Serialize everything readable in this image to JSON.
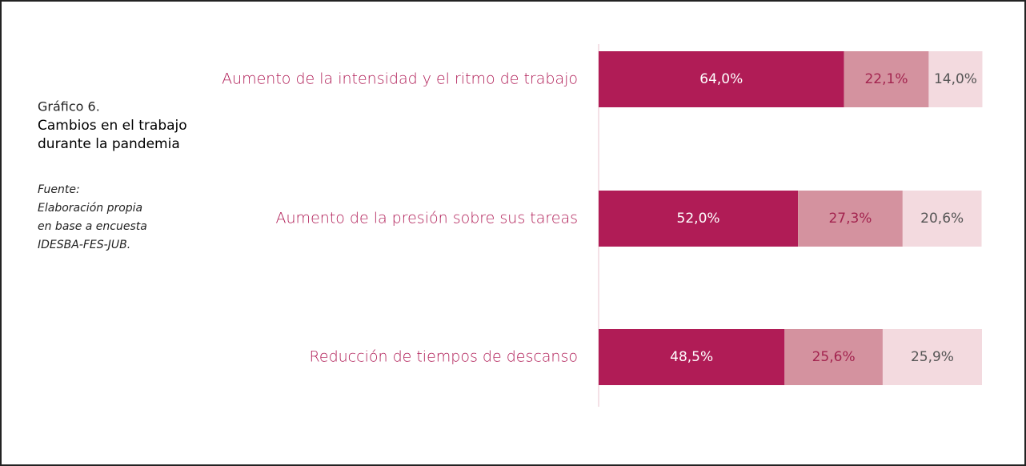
{
  "chart_data": {
    "type": "stacked_bar_horizontal",
    "figure_number": "Gráfico 6.",
    "title": [
      "Cambios en el trabajo",
      "durante la pandemia"
    ],
    "source": [
      "Fuente:",
      "Elaboración propia",
      "en base a encuesta",
      "IDESBA-FES-JUB."
    ],
    "categories": [
      "Aumento de la intensidad y el ritmo de trabajo",
      "Aumento de la presión sobre sus tareas",
      "Reducción de tiempos de descanso"
    ],
    "series": [
      {
        "color": "#b01c56",
        "values": [
          64.0,
          52.0,
          48.5
        ],
        "value_labels": [
          "64,0%",
          "52,0%",
          "48,5%"
        ]
      },
      {
        "color": "#d4929f",
        "values": [
          22.1,
          27.3,
          25.6
        ],
        "value_labels": [
          "22,1%",
          "27,3%",
          "25,6%"
        ]
      },
      {
        "color": "#f3dadf",
        "values": [
          14.0,
          20.6,
          25.9
        ],
        "value_labels": [
          "14,0%",
          "20,6%",
          "25,9%"
        ]
      }
    ],
    "xlim": [
      0,
      100
    ]
  }
}
